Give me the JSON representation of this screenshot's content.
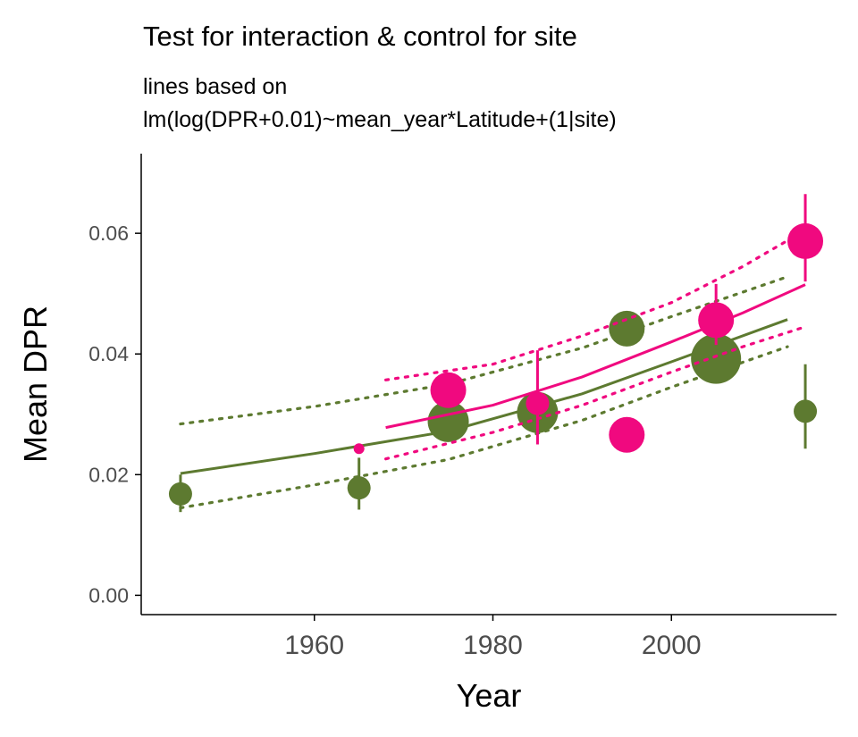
{
  "chart_data": {
    "type": "scatter",
    "title": "Test for interaction & control for site",
    "subtitle_lines": [
      "lines based on",
      "lm(log(DPR+0.01)~mean_year*Latitude+(1|site)"
    ],
    "xlabel": "Year",
    "ylabel": "Mean DPR",
    "xlim": [
      1940.6,
      2018.5
    ],
    "ylim": [
      -0.0032,
      0.0732
    ],
    "xticks": [
      1960,
      1980,
      2000
    ],
    "xtick_labels": [
      "1960",
      "1980",
      "2000"
    ],
    "yticks": [
      0.0,
      0.02,
      0.04,
      0.06
    ],
    "ytick_labels": [
      "0.00",
      "0.02",
      "0.04",
      "0.06"
    ],
    "grid": false,
    "legend": "none",
    "series": [
      {
        "color": "#5d7a30",
        "points": [
          {
            "x": 1945,
            "y": 0.0168,
            "lo": 0.0138,
            "hi": 0.02,
            "size": 1
          },
          {
            "x": 1965,
            "y": 0.0178,
            "lo": 0.0142,
            "hi": 0.0228,
            "size": 1
          },
          {
            "x": 1975,
            "y": 0.0288,
            "lo": 0.0266,
            "hi": 0.031,
            "size": 3
          },
          {
            "x": 1985,
            "y": 0.0303,
            "lo": 0.028,
            "hi": 0.0326,
            "size": 3
          },
          {
            "x": 1995,
            "y": 0.0442,
            "lo": 0.0425,
            "hi": 0.046,
            "size": 2
          },
          {
            "x": 2005,
            "y": 0.0392,
            "lo": 0.037,
            "hi": 0.0416,
            "size": 4
          },
          {
            "x": 2015,
            "y": 0.0305,
            "lo": 0.0243,
            "hi": 0.0383,
            "size": 1
          }
        ],
        "fit": [
          [
            1945,
            0.0202
          ],
          [
            1960,
            0.0235
          ],
          [
            1975,
            0.0272
          ],
          [
            1990,
            0.0334
          ],
          [
            2000,
            0.0387
          ],
          [
            2013,
            0.0457
          ]
        ],
        "ci_upper": [
          [
            1945,
            0.0284
          ],
          [
            1960,
            0.0313
          ],
          [
            1975,
            0.035
          ],
          [
            1990,
            0.041
          ],
          [
            2000,
            0.0462
          ],
          [
            2013,
            0.0528
          ]
        ],
        "ci_lower": [
          [
            1945,
            0.0145
          ],
          [
            1960,
            0.0183
          ],
          [
            1975,
            0.0225
          ],
          [
            1990,
            0.029
          ],
          [
            2000,
            0.0345
          ],
          [
            2013,
            0.0412
          ]
        ]
      },
      {
        "color": "#f0097f",
        "points": [
          {
            "x": 1965,
            "y": 0.0243,
            "lo": 0.0243,
            "hi": 0.0243,
            "size": 0
          },
          {
            "x": 1975,
            "y": 0.034,
            "lo": 0.032,
            "hi": 0.036,
            "size": 2
          },
          {
            "x": 1985,
            "y": 0.0318,
            "lo": 0.025,
            "hi": 0.0406,
            "size": 1
          },
          {
            "x": 1995,
            "y": 0.0266,
            "lo": 0.0266,
            "hi": 0.0266,
            "size": 2
          },
          {
            "x": 2005,
            "y": 0.0456,
            "lo": 0.0415,
            "hi": 0.0516,
            "size": 2
          },
          {
            "x": 2015,
            "y": 0.0587,
            "lo": 0.052,
            "hi": 0.0665,
            "size": 2
          }
        ],
        "fit": [
          [
            1968,
            0.0278
          ],
          [
            1980,
            0.0315
          ],
          [
            1990,
            0.0362
          ],
          [
            2000,
            0.042
          ],
          [
            2008,
            0.0468
          ],
          [
            2015,
            0.0515
          ]
        ],
        "ci_upper": [
          [
            1968,
            0.0357
          ],
          [
            1980,
            0.0383
          ],
          [
            1990,
            0.043
          ],
          [
            2000,
            0.0485
          ],
          [
            2008,
            0.0545
          ],
          [
            2015,
            0.0605
          ]
        ],
        "ci_lower": [
          [
            1968,
            0.0226
          ],
          [
            1980,
            0.027
          ],
          [
            1990,
            0.0315
          ],
          [
            2000,
            0.037
          ],
          [
            2008,
            0.0412
          ],
          [
            2015,
            0.0445
          ]
        ]
      }
    ]
  }
}
